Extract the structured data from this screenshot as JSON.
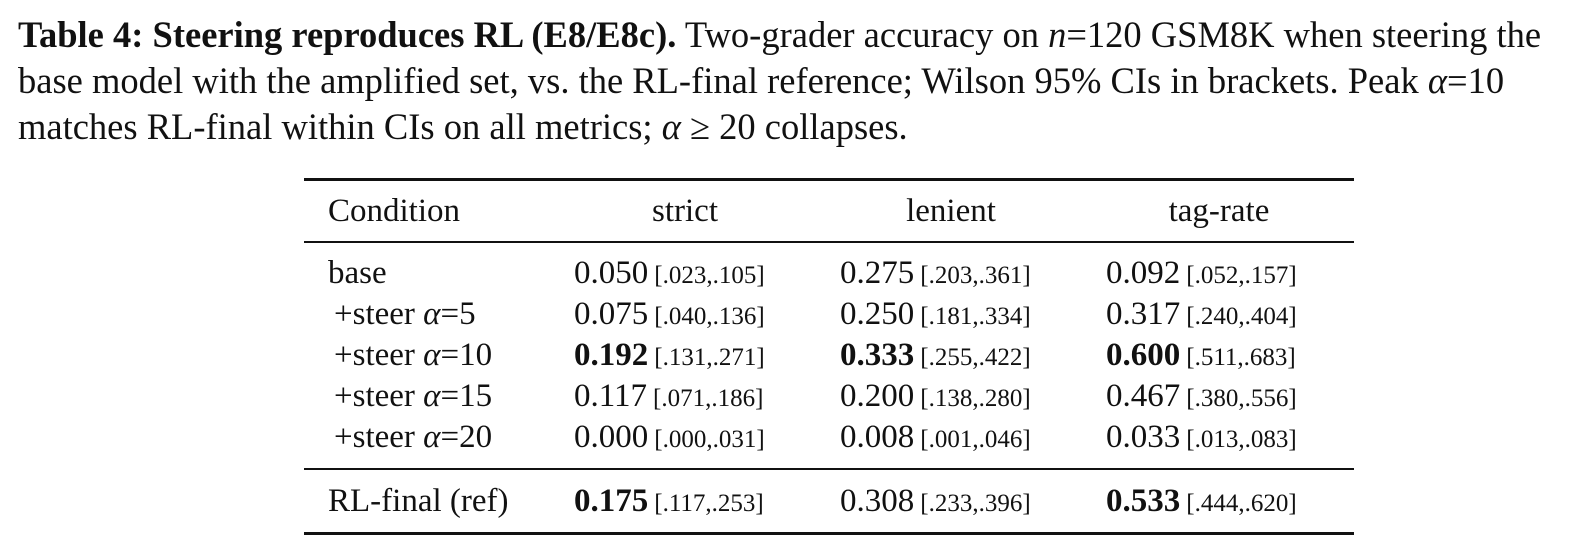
{
  "caption": {
    "label": "Table 4: Steering reproduces RL (E8/E8c).",
    "text_1": " Two-grader accuracy on ",
    "n_var": "n",
    "n_eq": "=120 GSM8K when steering the base model with the amplified set, vs. the RL-final reference; Wilson 95% CIs in brackets. Peak ",
    "alpha_1": "α",
    "text_2": "=10 matches RL-final within CIs on all metrics; ",
    "alpha_2": "α",
    "text_3": " ≥ 20 collapses."
  },
  "table": {
    "headers": {
      "condition": "Condition",
      "strict": "strict",
      "lenient": "lenient",
      "tag_rate": "tag-rate"
    },
    "rows": [
      {
        "cond_prefix": "base",
        "cond_alpha": "",
        "cond_suffix": "",
        "strict": {
          "value": "0.050",
          "ci": "[.023,.105]",
          "bold": false
        },
        "lenient": {
          "value": "0.275",
          "ci": "[.203,.361]",
          "bold": false
        },
        "tag_rate": {
          "value": "0.092",
          "ci": "[.052,.157]",
          "bold": false
        }
      },
      {
        "cond_prefix": "+steer ",
        "cond_alpha": "α",
        "cond_suffix": "=5",
        "strict": {
          "value": "0.075",
          "ci": "[.040,.136]",
          "bold": false
        },
        "lenient": {
          "value": "0.250",
          "ci": "[.181,.334]",
          "bold": false
        },
        "tag_rate": {
          "value": "0.317",
          "ci": "[.240,.404]",
          "bold": false
        }
      },
      {
        "cond_prefix": "+steer ",
        "cond_alpha": "α",
        "cond_suffix": "=10",
        "strict": {
          "value": "0.192",
          "ci": "[.131,.271]",
          "bold": true
        },
        "lenient": {
          "value": "0.333",
          "ci": "[.255,.422]",
          "bold": true
        },
        "tag_rate": {
          "value": "0.600",
          "ci": "[.511,.683]",
          "bold": true
        }
      },
      {
        "cond_prefix": "+steer ",
        "cond_alpha": "α",
        "cond_suffix": "=15",
        "strict": {
          "value": "0.117",
          "ci": "[.071,.186]",
          "bold": false
        },
        "lenient": {
          "value": "0.200",
          "ci": "[.138,.280]",
          "bold": false
        },
        "tag_rate": {
          "value": "0.467",
          "ci": "[.380,.556]",
          "bold": false
        }
      },
      {
        "cond_prefix": "+steer ",
        "cond_alpha": "α",
        "cond_suffix": "=20",
        "strict": {
          "value": "0.000",
          "ci": "[.000,.031]",
          "bold": false
        },
        "lenient": {
          "value": "0.008",
          "ci": "[.001,.046]",
          "bold": false
        },
        "tag_rate": {
          "value": "0.033",
          "ci": "[.013,.083]",
          "bold": false
        }
      }
    ],
    "reference": {
      "cond_prefix": "RL-final (ref)",
      "cond_alpha": "",
      "cond_suffix": "",
      "strict": {
        "value": "0.175",
        "ci": "[.117,.253]",
        "bold": true
      },
      "lenient": {
        "value": "0.308",
        "ci": "[.233,.396]",
        "bold": false
      },
      "tag_rate": {
        "value": "0.533",
        "ci": "[.444,.620]",
        "bold": true
      }
    }
  }
}
